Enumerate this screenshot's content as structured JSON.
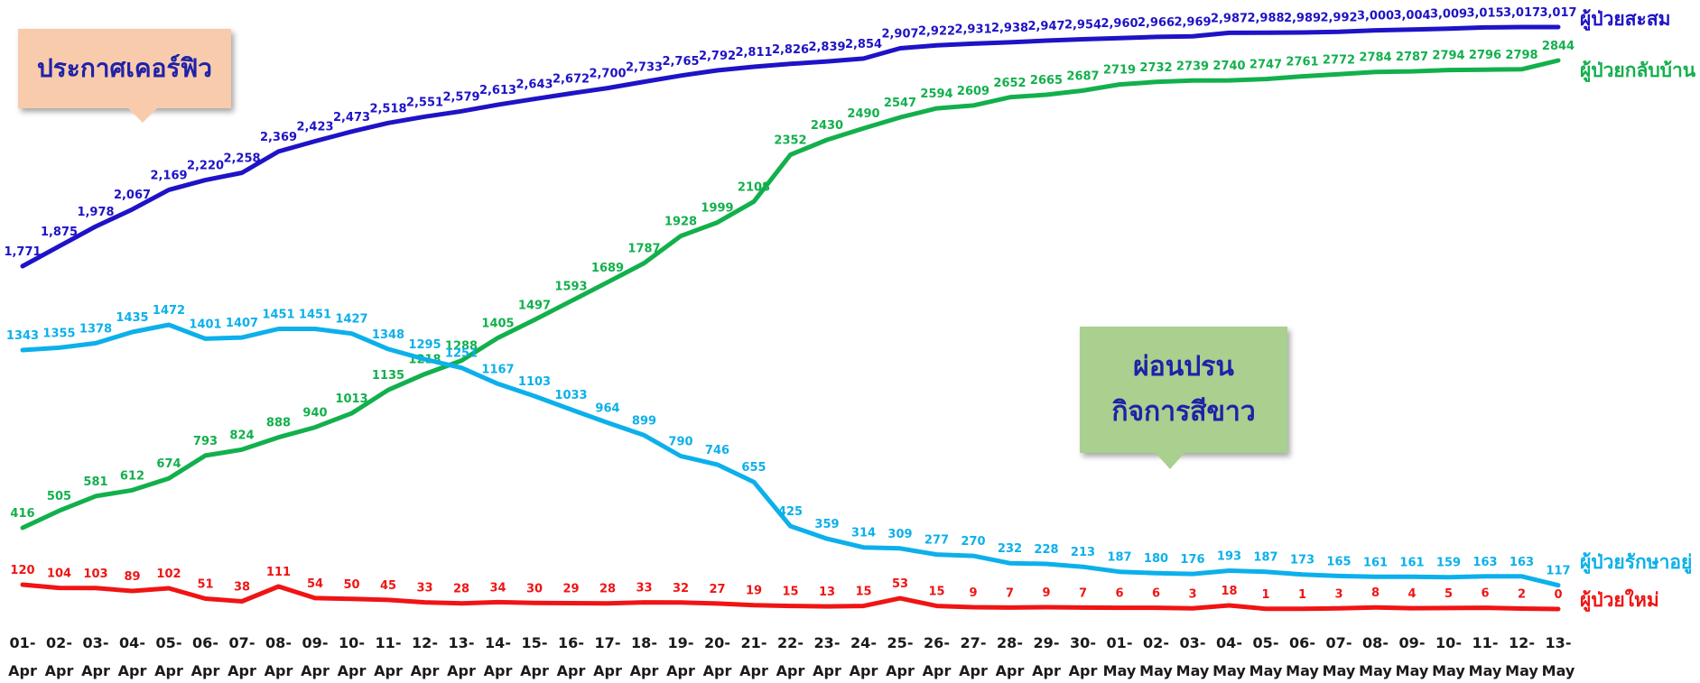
{
  "callouts": {
    "curfew": "ประกาศเคอร์ฟิว",
    "relax_line1": "ผ่อนปรน",
    "relax_line2": "กิจการสีขาว"
  },
  "chart_data": {
    "type": "line",
    "title": "",
    "xlabel": "",
    "ylabel": "",
    "grid": false,
    "legend": "series names at right end of each line",
    "x": [
      "01-Apr",
      "02-Apr",
      "03-Apr",
      "04-Apr",
      "05-Apr",
      "06-Apr",
      "07-Apr",
      "08-Apr",
      "09-Apr",
      "10-Apr",
      "11-Apr",
      "12-Apr",
      "13-Apr",
      "14-Apr",
      "15-Apr",
      "16-Apr",
      "17-Apr",
      "18-Apr",
      "19-Apr",
      "20-Apr",
      "21-Apr",
      "22-Apr",
      "23-Apr",
      "24-Apr",
      "25-Apr",
      "26-Apr",
      "27-Apr",
      "28-Apr",
      "29-Apr",
      "30-Apr",
      "01-May",
      "02-May",
      "03-May",
      "04-May",
      "05-May",
      "06-May",
      "07-May",
      "08-May",
      "09-May",
      "10-May",
      "11-May",
      "12-May",
      "13-May"
    ],
    "x_tick_lines": [
      [
        "01-",
        "Apr"
      ],
      [
        "02-",
        "Apr"
      ],
      [
        "03-",
        "Apr"
      ],
      [
        "04-",
        "Apr"
      ],
      [
        "05-",
        "Apr"
      ],
      [
        "06-",
        "Apr"
      ],
      [
        "07-",
        "Apr"
      ],
      [
        "08-",
        "Apr"
      ],
      [
        "09-",
        "Apr"
      ],
      [
        "10-",
        "Apr"
      ],
      [
        "11-",
        "Apr"
      ],
      [
        "12-",
        "Apr"
      ],
      [
        "13-",
        "Apr"
      ],
      [
        "14-",
        "Apr"
      ],
      [
        "15-",
        "Apr"
      ],
      [
        "16-",
        "Apr"
      ],
      [
        "17-",
        "Apr"
      ],
      [
        "18-",
        "Apr"
      ],
      [
        "19-",
        "Apr"
      ],
      [
        "20-",
        "Apr"
      ],
      [
        "21-",
        "Apr"
      ],
      [
        "22-",
        "Apr"
      ],
      [
        "23-",
        "Apr"
      ],
      [
        "24-",
        "Apr"
      ],
      [
        "25-",
        "Apr"
      ],
      [
        "26-",
        "Apr"
      ],
      [
        "27-",
        "Apr"
      ],
      [
        "28-",
        "Apr"
      ],
      [
        "29-",
        "Apr"
      ],
      [
        "30-",
        "Apr"
      ],
      [
        "01-",
        "May"
      ],
      [
        "02-",
        "May"
      ],
      [
        "03-",
        "May"
      ],
      [
        "04-",
        "May"
      ],
      [
        "05-",
        "May"
      ],
      [
        "06-",
        "May"
      ],
      [
        "07-",
        "May"
      ],
      [
        "08-",
        "May"
      ],
      [
        "09-",
        "May"
      ],
      [
        "10-",
        "May"
      ],
      [
        "11-",
        "May"
      ],
      [
        "12-",
        "May"
      ],
      [
        "13-",
        "May"
      ]
    ],
    "series": [
      {
        "key": "cumulative",
        "name": "ผู้ป่วยสะสม",
        "color": "#1e13c6",
        "labels_thousands_sep": true,
        "values": [
          1771,
          1875,
          1978,
          2067,
          2169,
          2220,
          2258,
          2369,
          2423,
          2473,
          2518,
          2551,
          2579,
          2613,
          2643,
          2672,
          2700,
          2733,
          2765,
          2792,
          2811,
          2826,
          2839,
          2854,
          2907,
          2922,
          2931,
          2938,
          2947,
          2954,
          2960,
          2966,
          2969,
          2987,
          2988,
          2989,
          2992,
          3000,
          3004,
          3009,
          3015,
          3017,
          3017
        ]
      },
      {
        "key": "recovered",
        "name": "ผู้ป่วยกลับบ้าน",
        "color": "#12b04c",
        "labels_thousands_sep": false,
        "values": [
          416,
          505,
          581,
          612,
          674,
          793,
          824,
          888,
          940,
          1013,
          1135,
          1218,
          1288,
          1405,
          1497,
          1593,
          1689,
          1787,
          1928,
          1999,
          2108,
          2352,
          2430,
          2490,
          2547,
          2594,
          2609,
          2652,
          2665,
          2687,
          2719,
          2732,
          2739,
          2740,
          2747,
          2761,
          2772,
          2784,
          2787,
          2794,
          2796,
          2798,
          2844
        ]
      },
      {
        "key": "treating",
        "name": "ผู้ป่วยรักษาอยู่",
        "color": "#0cb0ea",
        "labels_thousands_sep": false,
        "values": [
          1343,
          1355,
          1378,
          1435,
          1472,
          1401,
          1407,
          1451,
          1451,
          1427,
          1348,
          1295,
          1251,
          1167,
          1103,
          1033,
          964,
          899,
          790,
          746,
          655,
          425,
          359,
          314,
          309,
          277,
          270,
          232,
          228,
          213,
          187,
          180,
          176,
          193,
          187,
          173,
          165,
          161,
          161,
          159,
          163,
          163,
          117
        ]
      },
      {
        "key": "new",
        "name": "ผู้ป่วยใหม่",
        "color": "#f01414",
        "labels_thousands_sep": false,
        "values": [
          120,
          104,
          103,
          89,
          102,
          51,
          38,
          111,
          54,
          50,
          45,
          33,
          28,
          34,
          30,
          29,
          28,
          33,
          32,
          27,
          19,
          15,
          13,
          15,
          53,
          15,
          9,
          7,
          9,
          7,
          6,
          6,
          3,
          18,
          1,
          1,
          3,
          8,
          4,
          5,
          6,
          2,
          0
        ]
      }
    ]
  }
}
